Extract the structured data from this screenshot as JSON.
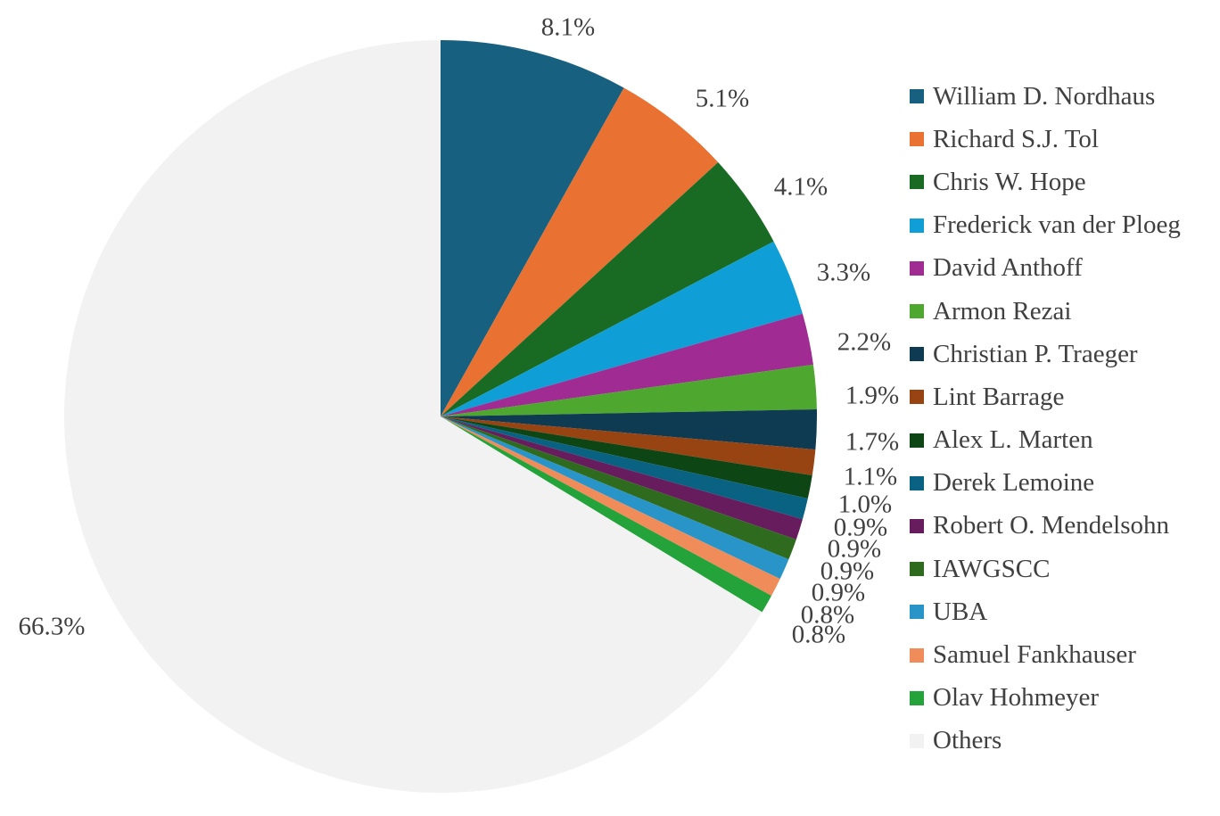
{
  "chart_data": {
    "type": "pie",
    "title": "",
    "start_angle": "12 o'clock",
    "direction": "clockwise",
    "legend_position": "right",
    "slices": [
      {
        "name": "William D. Nordhaus",
        "label": "8.1%",
        "value": 8.1,
        "color": "#17607F"
      },
      {
        "name": "Richard S.J. Tol",
        "label": "5.1%",
        "value": 5.1,
        "color": "#E97132"
      },
      {
        "name": "Chris W. Hope",
        "label": "4.1%",
        "value": 4.1,
        "color": "#196B24"
      },
      {
        "name": "Frederick van der Ploeg",
        "label": "3.3%",
        "value": 3.3,
        "color": "#0F9ED5"
      },
      {
        "name": "David Anthoff",
        "label": "2.2%",
        "value": 2.2,
        "color": "#A02B93"
      },
      {
        "name": "Armon Rezai",
        "label": "1.9%",
        "value": 1.9,
        "color": "#4EA72E"
      },
      {
        "name": "Christian P. Traeger",
        "label": "1.7%",
        "value": 1.7,
        "color": "#0E3A52"
      },
      {
        "name": "Lint Barrage",
        "label": "1.1%",
        "value": 1.1,
        "color": "#974312"
      },
      {
        "name": "Alex L. Marten",
        "label": "1.0%",
        "value": 1.0,
        "color": "#0E4515"
      },
      {
        "name": "Derek Lemoine",
        "label": "0.9%",
        "value": 0.9,
        "color": "#0A6283"
      },
      {
        "name": "Robert O. Mendelsohn",
        "label": "0.9%",
        "value": 0.9,
        "color": "#661C5D"
      },
      {
        "name": "IAWGSCC",
        "label": "0.9%",
        "value": 0.9,
        "color": "#2F6B1E"
      },
      {
        "name": "UBA",
        "label": "0.9%",
        "value": 0.9,
        "color": "#2894C8"
      },
      {
        "name": "Samuel Fankhauser",
        "label": "0.8%",
        "value": 0.8,
        "color": "#F08C5A"
      },
      {
        "name": "Olav Hohmeyer",
        "label": "0.8%",
        "value": 0.8,
        "color": "#23A33A"
      },
      {
        "name": "Others",
        "label": "66.3%",
        "value": 66.3,
        "color": "#F2F2F2"
      }
    ]
  }
}
